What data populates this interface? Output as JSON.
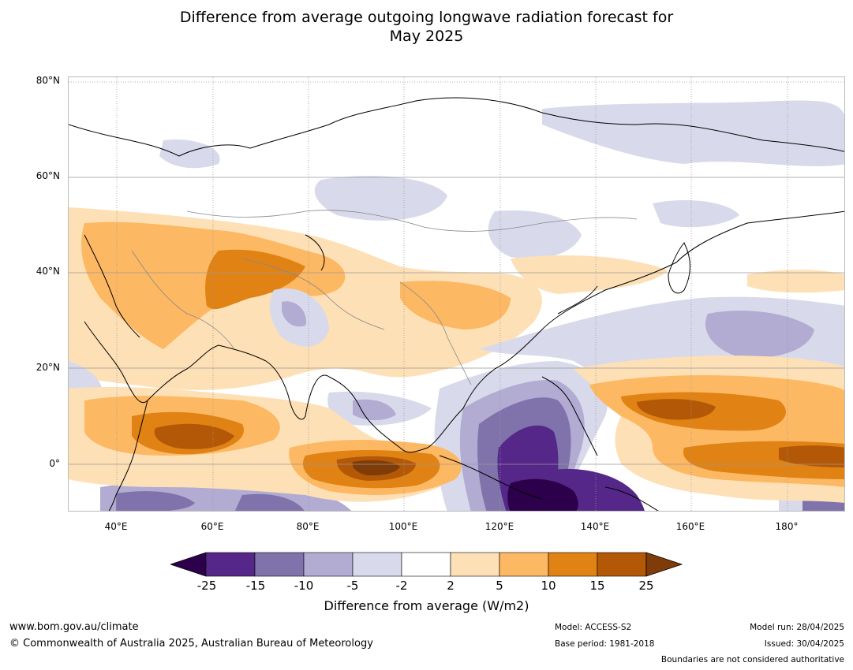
{
  "title": {
    "line1": "Difference from average outgoing longwave radiation forecast for",
    "line2": "May 2025"
  },
  "axes": {
    "lat_labels": [
      "80°N",
      "60°N",
      "40°N",
      "20°N",
      "0°"
    ],
    "lon_labels": [
      "40°E",
      "60°E",
      "80°E",
      "100°E",
      "120°E",
      "140°E",
      "160°E",
      "180°"
    ]
  },
  "colorbar": {
    "ticks": [
      "-25",
      "-15",
      "-10",
      "-5",
      "-2",
      "2",
      "5",
      "10",
      "15",
      "25"
    ],
    "label": "Difference from average (W/m2)",
    "colors": [
      "#2d004b",
      "#542788",
      "#8073ac",
      "#b2abd2",
      "#d8daeb",
      "#ffffff",
      "#fee0b6",
      "#fdb863",
      "#e08214",
      "#b35806",
      "#7f3b08"
    ]
  },
  "footer": {
    "website": "www.bom.gov.au/climate",
    "copyright": "© Commonwealth of Australia 2025, Australian Bureau of Meteorology",
    "model": "Model: ACCESS-S2",
    "base_period": "Base period: 1981-2018",
    "model_run": "Model run: 28/04/2025",
    "issued": "Issued: 30/04/2025",
    "disclaimer": "Boundaries are not considered authoritative"
  }
}
